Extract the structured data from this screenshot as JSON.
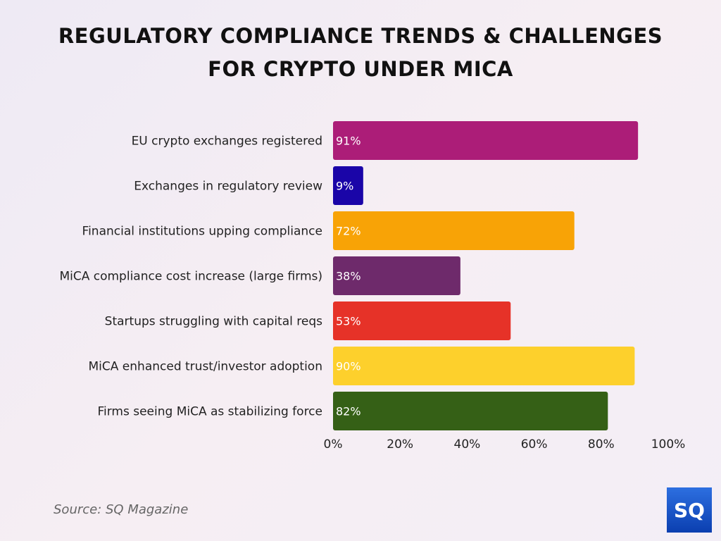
{
  "chart_data": {
    "type": "bar",
    "orientation": "horizontal",
    "title": "REGULATORY COMPLIANCE TRENDS & CHALLENGES FOR CRYPTO UNDER MICA",
    "categories": [
      "EU crypto exchanges registered",
      "Exchanges in regulatory review",
      "Financial institutions upping compliance",
      "MiCA compliance cost increase (large firms)",
      "Startups struggling with capital reqs",
      "MiCA enhanced trust/investor adoption",
      "Firms seeing MiCA as stabilizing force"
    ],
    "values": [
      91,
      9,
      72,
      38,
      53,
      90,
      82
    ],
    "data_labels": [
      "91%",
      "9%",
      "72%",
      "38%",
      "53%",
      "90%",
      "82%"
    ],
    "colors": [
      "#ac1d78",
      "#1a05a8",
      "#f8a306",
      "#6e2a6b",
      "#e63228",
      "#fdd02c",
      "#356016"
    ],
    "xlim": [
      0,
      100
    ],
    "x_ticks": [
      "0%",
      "20%",
      "40%",
      "60%",
      "80%",
      "100%"
    ],
    "xlabel": "",
    "ylabel": "",
    "grid": false,
    "legend": "none"
  },
  "source": "Source: SQ Magazine",
  "logo_text": "SQ"
}
